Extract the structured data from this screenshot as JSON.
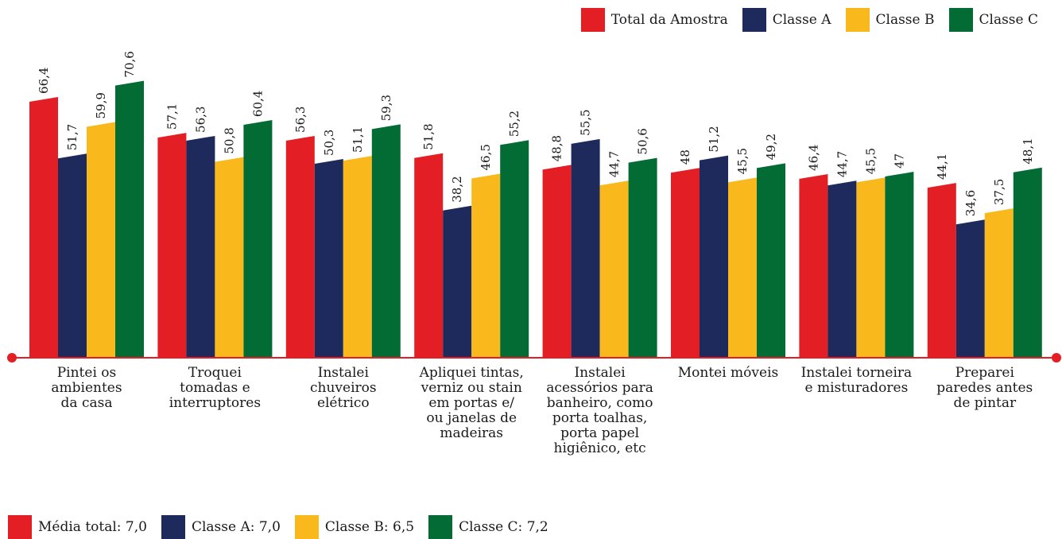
{
  "chart_data": {
    "type": "bar",
    "categories": [
      [
        "Pintei os",
        "ambientes",
        "da casa"
      ],
      [
        "Troquei",
        "tomadas e",
        "interruptores"
      ],
      [
        "Instalei",
        "chuveiros",
        "elétrico"
      ],
      [
        "Apliquei tintas,",
        "verniz ou stain",
        "em portas e/",
        "ou janelas de",
        "madeiras"
      ],
      [
        "Instalei",
        "acessórios para",
        "banheiro, como",
        "porta toalhas,",
        "porta papel",
        "higiênico, etc"
      ],
      [
        "Montei móveis"
      ],
      [
        "Instalei torneira",
        "e misturadores"
      ],
      [
        "Preparei",
        "paredes antes",
        "de pintar"
      ]
    ],
    "series": [
      {
        "name": "Total da Amostra",
        "color": "#e31e24",
        "values": [
          66.4,
          57.1,
          56.3,
          51.8,
          48.8,
          48,
          46.4,
          44.1
        ],
        "labels": [
          "66,4",
          "57,1",
          "56,3",
          "51,8",
          "48,8",
          "48",
          "46,4",
          "44,1"
        ]
      },
      {
        "name": "Classe A",
        "color": "#1f2a5c",
        "values": [
          51.7,
          56.3,
          50.3,
          38.2,
          55.5,
          51.2,
          44.7,
          34.6
        ],
        "labels": [
          "51,7",
          "56,3",
          "50,3",
          "38,2",
          "55,5",
          "51,2",
          "44,7",
          "34,6"
        ]
      },
      {
        "name": "Classe B",
        "color": "#f9b81b",
        "values": [
          59.9,
          50.8,
          51.1,
          46.5,
          44.7,
          45.5,
          45.5,
          37.5
        ],
        "labels": [
          "59,9",
          "50,8",
          "51,1",
          "46,5",
          "44,7",
          "45,5",
          "45,5",
          "37,5"
        ]
      },
      {
        "name": "Classe C",
        "color": "#036c34",
        "values": [
          70.6,
          60.4,
          59.3,
          55.2,
          50.6,
          49.2,
          47,
          48.1
        ],
        "labels": [
          "70,6",
          "60,4",
          "59,3",
          "55,2",
          "50,6",
          "49,2",
          "47",
          "48,1"
        ]
      }
    ],
    "ylim": [
      0,
      80
    ],
    "grid": false,
    "legend_position": "top-right",
    "axis_color": "#e31e24"
  },
  "legend_top": [
    {
      "label": "Total da Amostra",
      "color": "#e31e24"
    },
    {
      "label": "Classe A",
      "color": "#1f2a5c"
    },
    {
      "label": "Classe B",
      "color": "#f9b81b"
    },
    {
      "label": "Classe C",
      "color": "#036c34"
    }
  ],
  "legend_bottom": [
    {
      "label": "Média total: 7,0",
      "color": "#e31e24"
    },
    {
      "label": "Classe A: 7,0",
      "color": "#1f2a5c"
    },
    {
      "label": "Classe B: 6,5",
      "color": "#f9b81b"
    },
    {
      "label": "Classe C: 7,2",
      "color": "#036c34"
    }
  ]
}
